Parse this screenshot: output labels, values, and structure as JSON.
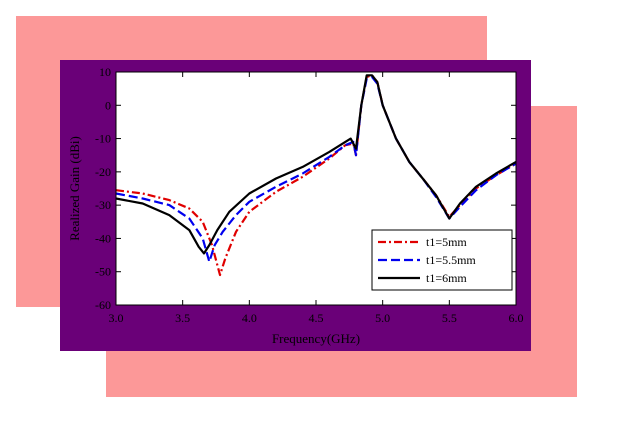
{
  "colors": {
    "pink": "#fc9898",
    "frame": "#6a0078",
    "plot_bg": "#ffffff",
    "axis": "#000000"
  },
  "chart_data": {
    "type": "line",
    "title": "",
    "xlabel": "Frequency(GHz)",
    "ylabel": "Realized Gain (dBi)",
    "xlim": [
      3.0,
      6.0
    ],
    "ylim": [
      -60,
      10
    ],
    "xticks": [
      3.0,
      3.5,
      4.0,
      4.5,
      5.0,
      5.5,
      6.0
    ],
    "xtick_labels": [
      "3.0",
      "3.5",
      "4.0",
      "4.5",
      "5.0",
      "5.5",
      "6.0"
    ],
    "yticks": [
      -60,
      -50,
      -40,
      -30,
      -20,
      -10,
      0,
      10
    ],
    "ytick_labels": [
      "-60",
      "-50",
      "-40",
      "-30",
      "-20",
      "-10",
      "0",
      "10"
    ],
    "grid": false,
    "legend_position": "bottom-right",
    "series": [
      {
        "name": "t1=5mm",
        "color": "#e00000",
        "dash": "dash-dot",
        "points": [
          [
            3.0,
            -25.5
          ],
          [
            3.2,
            -26.5
          ],
          [
            3.4,
            -28.5
          ],
          [
            3.55,
            -31
          ],
          [
            3.65,
            -35
          ],
          [
            3.72,
            -42
          ],
          [
            3.78,
            -51
          ],
          [
            3.82,
            -46
          ],
          [
            3.9,
            -38
          ],
          [
            4.0,
            -32
          ],
          [
            4.2,
            -26
          ],
          [
            4.4,
            -21.5
          ],
          [
            4.6,
            -16
          ],
          [
            4.72,
            -12
          ],
          [
            4.78,
            -11.5
          ],
          [
            4.8,
            -15
          ],
          [
            4.84,
            0
          ],
          [
            4.88,
            8.5
          ],
          [
            4.92,
            9
          ],
          [
            4.96,
            7
          ],
          [
            5.0,
            0
          ],
          [
            5.1,
            -10
          ],
          [
            5.2,
            -17
          ],
          [
            5.3,
            -22
          ],
          [
            5.4,
            -27
          ],
          [
            5.5,
            -33.5
          ],
          [
            5.58,
            -30
          ],
          [
            5.7,
            -25
          ],
          [
            5.85,
            -21
          ],
          [
            6.0,
            -17.5
          ]
        ]
      },
      {
        "name": "t1=5.5mm",
        "color": "#0000ee",
        "dash": "dash",
        "points": [
          [
            3.0,
            -26.5
          ],
          [
            3.2,
            -28
          ],
          [
            3.4,
            -30
          ],
          [
            3.55,
            -34
          ],
          [
            3.65,
            -40
          ],
          [
            3.7,
            -47
          ],
          [
            3.74,
            -42
          ],
          [
            3.8,
            -38
          ],
          [
            3.9,
            -33
          ],
          [
            4.0,
            -29
          ],
          [
            4.2,
            -24.5
          ],
          [
            4.4,
            -20.5
          ],
          [
            4.6,
            -15.5
          ],
          [
            4.72,
            -12
          ],
          [
            4.78,
            -11
          ],
          [
            4.8,
            -15
          ],
          [
            4.84,
            0
          ],
          [
            4.88,
            8
          ],
          [
            4.92,
            8.5
          ],
          [
            4.96,
            6.5
          ],
          [
            5.0,
            0
          ],
          [
            5.1,
            -10
          ],
          [
            5.2,
            -17
          ],
          [
            5.3,
            -22
          ],
          [
            5.4,
            -27.5
          ],
          [
            5.5,
            -34
          ],
          [
            5.58,
            -30.5
          ],
          [
            5.7,
            -25.5
          ],
          [
            5.85,
            -21
          ],
          [
            6.0,
            -17.5
          ]
        ]
      },
      {
        "name": "t1=6mm",
        "color": "#000000",
        "dash": "solid",
        "points": [
          [
            3.0,
            -28
          ],
          [
            3.2,
            -29.5
          ],
          [
            3.4,
            -33
          ],
          [
            3.55,
            -37.5
          ],
          [
            3.62,
            -42.5
          ],
          [
            3.66,
            -44.5
          ],
          [
            3.7,
            -42
          ],
          [
            3.76,
            -37.5
          ],
          [
            3.85,
            -32
          ],
          [
            4.0,
            -26.5
          ],
          [
            4.2,
            -22
          ],
          [
            4.4,
            -18.5
          ],
          [
            4.6,
            -14
          ],
          [
            4.72,
            -11
          ],
          [
            4.76,
            -10
          ],
          [
            4.8,
            -13
          ],
          [
            4.84,
            0
          ],
          [
            4.88,
            9
          ],
          [
            4.92,
            9
          ],
          [
            4.96,
            7
          ],
          [
            5.0,
            0
          ],
          [
            5.1,
            -10
          ],
          [
            5.2,
            -17
          ],
          [
            5.3,
            -22
          ],
          [
            5.4,
            -27
          ],
          [
            5.5,
            -34
          ],
          [
            5.58,
            -29.5
          ],
          [
            5.7,
            -24.5
          ],
          [
            5.85,
            -20.5
          ],
          [
            6.0,
            -17
          ]
        ]
      }
    ]
  }
}
